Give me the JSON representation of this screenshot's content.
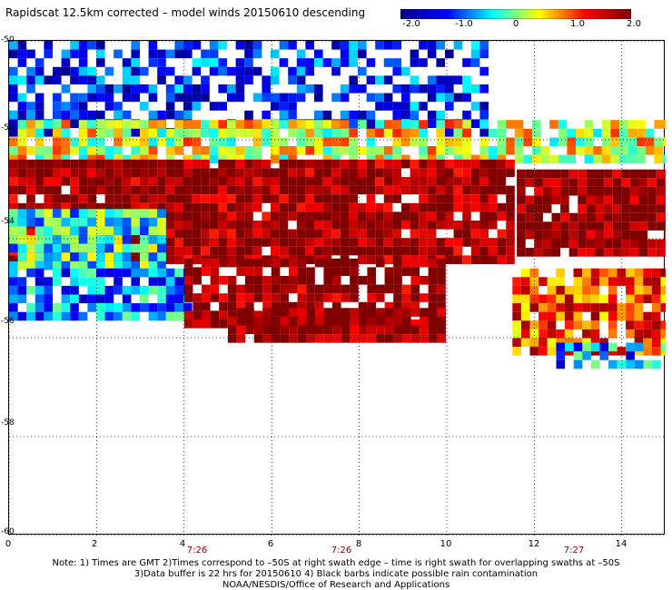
{
  "title": "Rapidscat 12.5km corrected – model winds 20150610 descending",
  "colorbar": {
    "labels": [
      "-2.0",
      "-1.0",
      "0",
      "1.0",
      "2.0"
    ],
    "min": -2.0,
    "max": 2.0,
    "stops": [
      "#00008f",
      "#0000ff",
      "#00ffff",
      "#ffff00",
      "#ff0000",
      "#800000"
    ]
  },
  "map": {
    "y_labels": [
      "-50",
      "-52",
      "-54",
      "-56",
      "-58",
      "-60"
    ],
    "x_labels": [
      "0",
      "2",
      "4",
      "6",
      "8",
      "10",
      "12",
      "14"
    ],
    "time_labels": [
      "7:26",
      "7:26",
      "7:27"
    ],
    "grid": "dotted",
    "lon_range": [
      0,
      15
    ],
    "lat_range": [
      -60,
      -50
    ],
    "swath_bands": [
      {
        "lat_top": -50.0,
        "lat_bottom": -51.8,
        "lon_start": 0.0,
        "lon_end": 10.8,
        "mean_value": -1.2,
        "sparsity": 0.45
      },
      {
        "lat_top": -51.6,
        "lat_bottom": -52.4,
        "lon_start": 0.0,
        "lon_end": 15.0,
        "mean_value": 0.3,
        "sparsity": 0.2
      },
      {
        "lat_top": -52.4,
        "lat_bottom": -54.4,
        "lon_start": 0.0,
        "lon_end": 11.5,
        "mean_value": 1.9,
        "sparsity": 0.05
      },
      {
        "lat_top": -52.6,
        "lat_bottom": -54.2,
        "lon_start": 11.6,
        "lon_end": 15.0,
        "mean_value": 2.0,
        "sparsity": 0.05
      },
      {
        "lat_top": -53.4,
        "lat_bottom": -54.6,
        "lon_start": 0.0,
        "lon_end": 3.5,
        "mean_value": -0.3,
        "sparsity": 0.05
      },
      {
        "lat_top": -54.6,
        "lat_bottom": -55.6,
        "lon_start": 0.0,
        "lon_end": 4.0,
        "mean_value": -0.8,
        "sparsity": 0.2
      },
      {
        "lat_top": -54.4,
        "lat_bottom": -55.8,
        "lon_start": 4.0,
        "lon_end": 9.8,
        "mean_value": 1.9,
        "sparsity": 0.2
      },
      {
        "lat_top": -55.4,
        "lat_bottom": -56.1,
        "lon_start": 5.0,
        "lon_end": 9.8,
        "mean_value": 2.0,
        "sparsity": 0.05
      },
      {
        "lat_top": -54.6,
        "lat_bottom": -56.3,
        "lon_start": 11.5,
        "lon_end": 15.0,
        "mean_value": 1.1,
        "sparsity": 0.15
      },
      {
        "lat_top": -56.1,
        "lat_bottom": -56.6,
        "lon_start": 12.5,
        "lon_end": 15.0,
        "mean_value": -0.8,
        "sparsity": 0.3
      }
    ]
  },
  "notes": [
    "Note: 1) Times are GMT 2)Times correspond to –50S at right swath edge – time is right swath for overlapping swaths at –50S",
    "3)Data buffer is 22 hrs for 20150610 4) Black barbs indicate possible rain contamination",
    "NOAA/NESDIS/Office of Research and Applications"
  ]
}
